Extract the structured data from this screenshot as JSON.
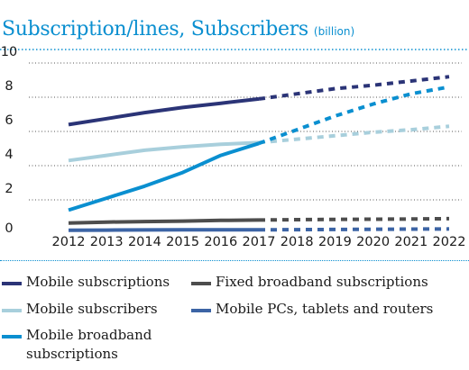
{
  "chart_data": {
    "type": "line",
    "title": "Subscription/lines, Subscribers",
    "unit": "(billion)",
    "x": [
      2012,
      2013,
      2014,
      2015,
      2016,
      2017,
      2018,
      2019,
      2020,
      2021,
      2022
    ],
    "x_tick_labels": [
      "2012",
      "2013",
      "2014",
      "2015",
      "2016",
      "2017",
      "2018",
      "2019",
      "2020",
      "2021",
      "2022"
    ],
    "y_tick_labels": [
      "0",
      "2",
      "4",
      "6",
      "8",
      "10"
    ],
    "ylim": [
      0,
      10
    ],
    "grid": "horizontal dotted",
    "legend_position": "bottom",
    "forecast_from": 2017,
    "series": [
      {
        "name": "Mobile subscriptions",
        "color": "#2b3477",
        "values": [
          6.4,
          6.75,
          7.1,
          7.4,
          7.65,
          7.9,
          8.2,
          8.5,
          8.7,
          8.95,
          9.2
        ]
      },
      {
        "name": "Mobile subscribers",
        "color": "#a8cfdc",
        "values": [
          4.3,
          4.6,
          4.9,
          5.1,
          5.25,
          5.35,
          5.55,
          5.75,
          5.95,
          6.1,
          6.3
        ]
      },
      {
        "name": "Mobile broadband subscriptions",
        "color": "#0a8fd0",
        "values": [
          1.4,
          2.1,
          2.8,
          3.6,
          4.6,
          5.3,
          6.1,
          6.9,
          7.6,
          8.2,
          8.6
        ]
      },
      {
        "name": "Fixed broadband subscriptions",
        "color": "#4d4d4d",
        "values": [
          0.65,
          0.7,
          0.73,
          0.76,
          0.8,
          0.82,
          0.84,
          0.86,
          0.87,
          0.88,
          0.9
        ]
      },
      {
        "name": "Mobile PCs, tablets and routers",
        "color": "#3c64a5",
        "values": [
          0.22,
          0.23,
          0.24,
          0.25,
          0.25,
          0.25,
          0.26,
          0.27,
          0.28,
          0.29,
          0.3
        ]
      }
    ]
  },
  "legend": [
    {
      "label": "Mobile subscriptions",
      "color": "#2b3477"
    },
    {
      "label": "Fixed broadband subscriptions",
      "color": "#4d4d4d"
    },
    {
      "label": "Mobile subscribers",
      "color": "#a8cfdc"
    },
    {
      "label": "Mobile PCs, tablets and routers",
      "color": "#3c64a5"
    },
    {
      "label": "Mobile broadband subscriptions",
      "color": "#0a8fd0"
    }
  ]
}
